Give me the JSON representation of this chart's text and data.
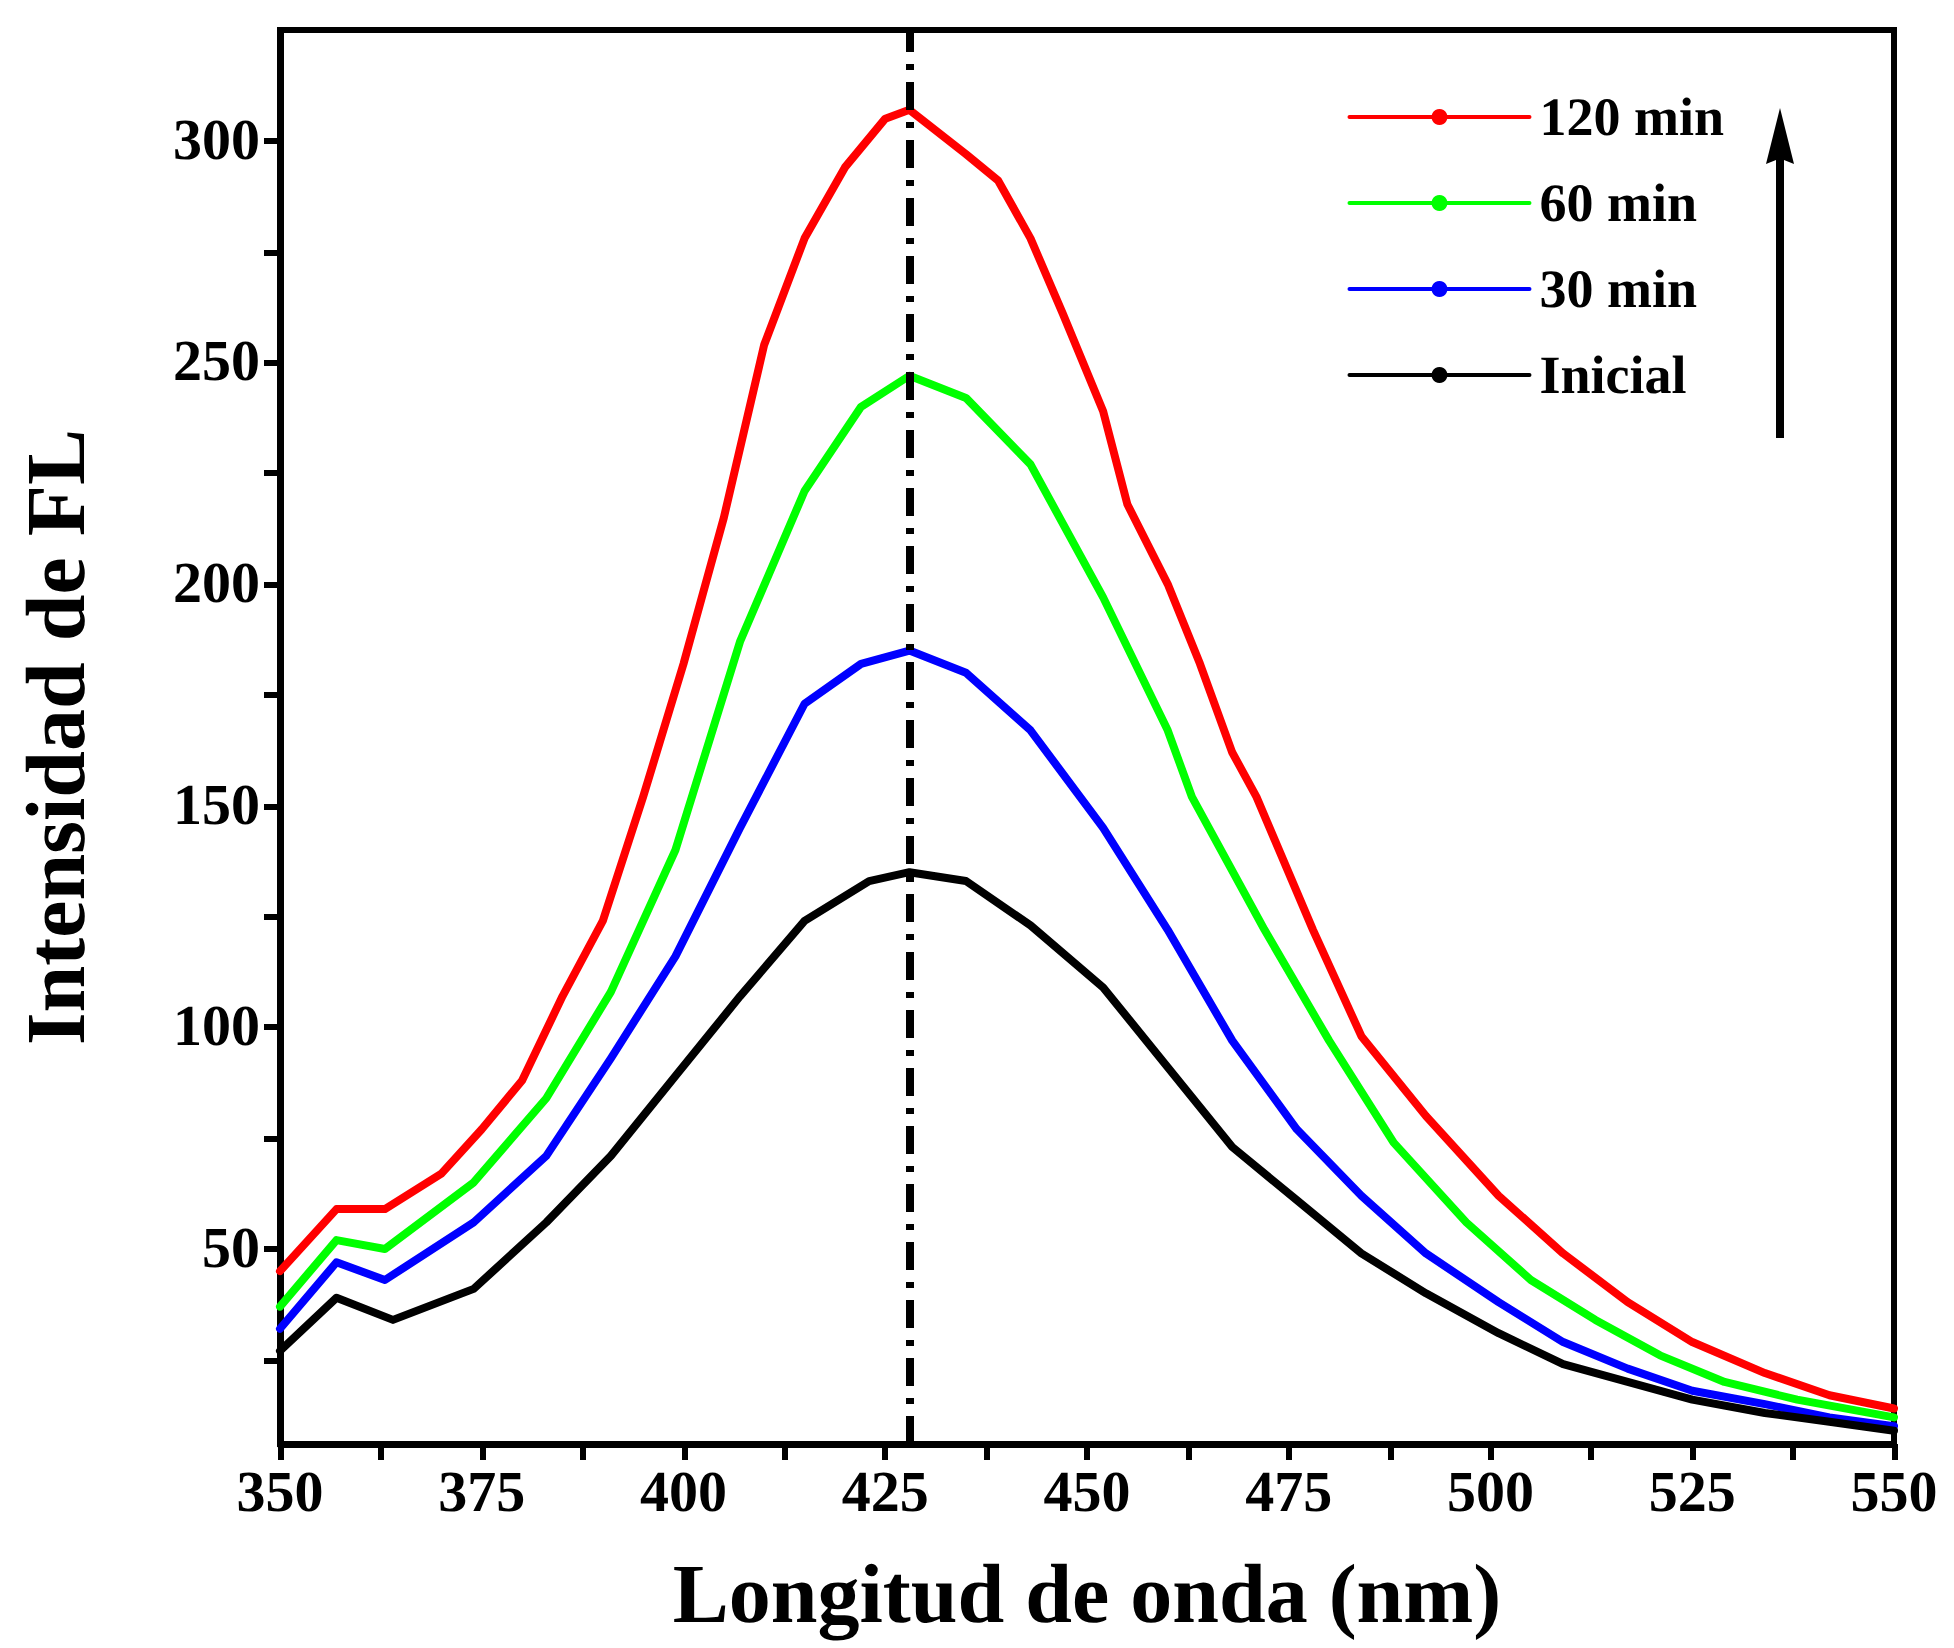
{
  "chart_data": {
    "type": "line",
    "xlabel": "Longitud de onda (nm)",
    "ylabel": "Intensidad de FL",
    "xlim": [
      350,
      550
    ],
    "ylim": [
      6,
      325
    ],
    "xticks": [
      350,
      {
        "value": 362.5,
        "label": null
      },
      375,
      {
        "value": 387.5,
        "label": null
      },
      400,
      {
        "value": 412.5,
        "label": null
      },
      425,
      {
        "value": 437.5,
        "label": null
      },
      450,
      {
        "value": 462.5,
        "label": null
      },
      475,
      {
        "value": 487.5,
        "label": null
      },
      500,
      {
        "value": 512.5,
        "label": null
      },
      525,
      {
        "value": 537.5,
        "label": null
      },
      550
    ],
    "yticks": [
      {
        "value": 25,
        "label": null
      },
      50,
      {
        "value": 75,
        "label": null
      },
      100,
      {
        "value": 125,
        "label": null
      },
      150,
      {
        "value": 175,
        "label": null
      },
      200,
      {
        "value": 225,
        "label": null
      },
      250,
      {
        "value": 275,
        "label": null
      },
      300
    ],
    "legend": "top right",
    "grid": false,
    "marker": "none",
    "line_style": "solid",
    "ref_lines": [
      {
        "axis": "x",
        "value": 428,
        "color": "#000000",
        "line_style": "dashed"
      }
    ],
    "series": [
      {
        "name": "120 min",
        "color": "#ff0000",
        "x": [
          350,
          357,
          363,
          370,
          375,
          380,
          385,
          390,
          395,
          400,
          405,
          410,
          415,
          420,
          425,
          428,
          435,
          439,
          443,
          447,
          452,
          455,
          460,
          464,
          468,
          471,
          478,
          484,
          492,
          501,
          509,
          517,
          525,
          534,
          542,
          550
        ],
        "values": [
          45,
          59,
          59,
          67,
          77,
          88,
          107,
          124,
          152,
          182,
          215,
          254,
          278,
          294,
          305,
          307,
          297,
          291,
          278,
          261,
          239,
          218,
          200,
          182,
          162,
          152,
          122,
          98,
          80,
          62,
          49,
          38,
          29,
          22,
          17,
          14
        ]
      },
      {
        "name": "60 min",
        "color": "#00ff00",
        "x": [
          350,
          357,
          363,
          374,
          383,
          391,
          399,
          407,
          415,
          422,
          428,
          435,
          443,
          452,
          460,
          463,
          472,
          480,
          488,
          497,
          505,
          513,
          521,
          529,
          538,
          550
        ],
        "values": [
          37,
          52,
          50,
          65,
          84,
          108,
          140,
          187,
          221,
          240,
          247,
          242,
          227,
          197,
          167,
          152,
          122,
          97,
          74,
          56,
          43,
          34,
          26,
          20,
          16,
          12
        ]
      },
      {
        "name": "30 min",
        "color": "#0000ff",
        "x": [
          350,
          357,
          363,
          374,
          383,
          391,
          399,
          407,
          415,
          422,
          428,
          435,
          443,
          452,
          460,
          468,
          476,
          484,
          492,
          501,
          509,
          517,
          525,
          534,
          542,
          550
        ],
        "values": [
          32,
          47,
          43,
          56,
          71,
          93,
          116,
          145,
          173,
          182,
          185,
          180,
          167,
          145,
          122,
          97,
          77,
          62,
          49,
          38,
          29,
          23,
          18,
          15,
          12,
          10
        ]
      },
      {
        "name": "Inicial",
        "color": "#000000",
        "x": [
          350,
          357,
          364,
          374,
          383,
          391,
          399,
          407,
          415,
          423,
          428,
          435,
          443,
          452,
          460,
          468,
          476,
          484,
          492,
          501,
          509,
          517,
          525,
          534,
          542,
          550
        ],
        "values": [
          27,
          39,
          34,
          41,
          56,
          71,
          89,
          107,
          124,
          133,
          135,
          133,
          123,
          109,
          91,
          73,
          61,
          49,
          40,
          31,
          24,
          20,
          16,
          13,
          11,
          9
        ]
      }
    ]
  }
}
